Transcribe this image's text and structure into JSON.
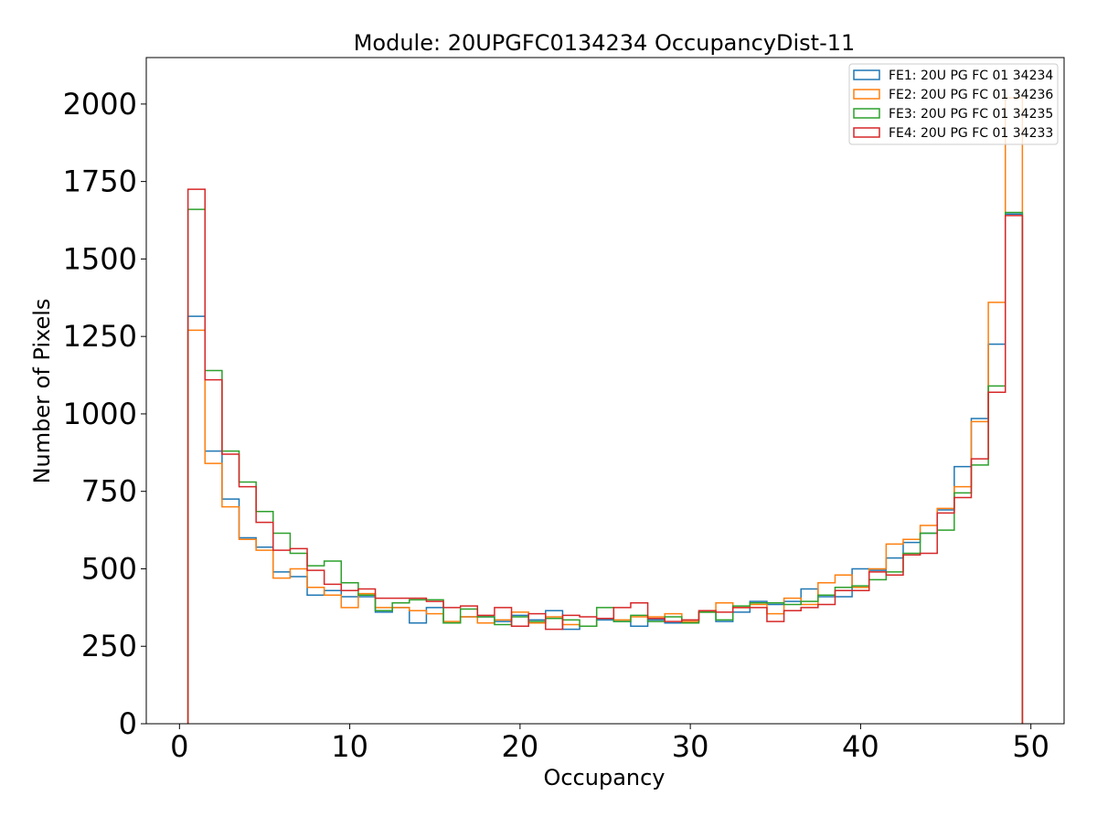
{
  "chart_data": {
    "type": "step-histogram",
    "title": "Module: 20UPGFC0134234 OccupancyDist-11",
    "xlabel": "Occupancy",
    "ylabel": "Number of Pixels",
    "xlim": [
      -1.95,
      51.95
    ],
    "ylim": [
      0,
      2150
    ],
    "xticks": [
      0,
      10,
      20,
      30,
      40,
      50
    ],
    "yticks": [
      0,
      250,
      500,
      750,
      1000,
      1250,
      1500,
      1750,
      2000
    ],
    "bin_start": 0.5,
    "bin_width": 1,
    "legend_position": "top-right",
    "series": [
      {
        "name": "FE1: 20U PG FC 01 34234",
        "color": "#1f77b4",
        "values": [
          1315,
          880,
          725,
          600,
          570,
          490,
          475,
          415,
          430,
          410,
          410,
          360,
          375,
          325,
          375,
          325,
          345,
          345,
          330,
          350,
          335,
          365,
          305,
          315,
          335,
          330,
          315,
          335,
          325,
          330,
          360,
          330,
          360,
          395,
          385,
          395,
          435,
          410,
          410,
          500,
          495,
          535,
          585,
          615,
          690,
          830,
          985,
          1225,
          1645
        ]
      },
      {
        "name": "FE2: 20U PG FC 01 34236",
        "color": "#ff7f0e",
        "values": [
          1270,
          840,
          700,
          595,
          560,
          470,
          500,
          440,
          415,
          375,
          420,
          375,
          375,
          365,
          355,
          330,
          345,
          325,
          335,
          360,
          325,
          345,
          320,
          315,
          340,
          335,
          345,
          345,
          355,
          330,
          360,
          390,
          375,
          385,
          355,
          405,
          385,
          455,
          480,
          440,
          500,
          580,
          595,
          640,
          695,
          765,
          975,
          1360,
          2020
        ]
      },
      {
        "name": "FE3: 20U PG FC 01 34235",
        "color": "#2ca02c",
        "values": [
          1660,
          1140,
          880,
          780,
          685,
          615,
          550,
          510,
          525,
          455,
          415,
          365,
          390,
          400,
          400,
          325,
          370,
          345,
          320,
          345,
          330,
          340,
          335,
          315,
          375,
          330,
          350,
          330,
          345,
          325,
          360,
          335,
          380,
          390,
          390,
          385,
          395,
          415,
          440,
          445,
          465,
          490,
          550,
          615,
          625,
          745,
          835,
          1090,
          1650
        ]
      },
      {
        "name": "FE4: 20U PG FC 01 34233",
        "color": "#d62728",
        "values": [
          1725,
          1110,
          870,
          765,
          650,
          560,
          565,
          495,
          450,
          430,
          435,
          405,
          405,
          405,
          395,
          375,
          380,
          350,
          375,
          315,
          355,
          305,
          350,
          345,
          340,
          375,
          390,
          340,
          330,
          335,
          365,
          360,
          375,
          375,
          330,
          365,
          375,
          385,
          430,
          430,
          490,
          480,
          545,
          550,
          680,
          730,
          855,
          1070,
          1640
        ]
      }
    ]
  }
}
